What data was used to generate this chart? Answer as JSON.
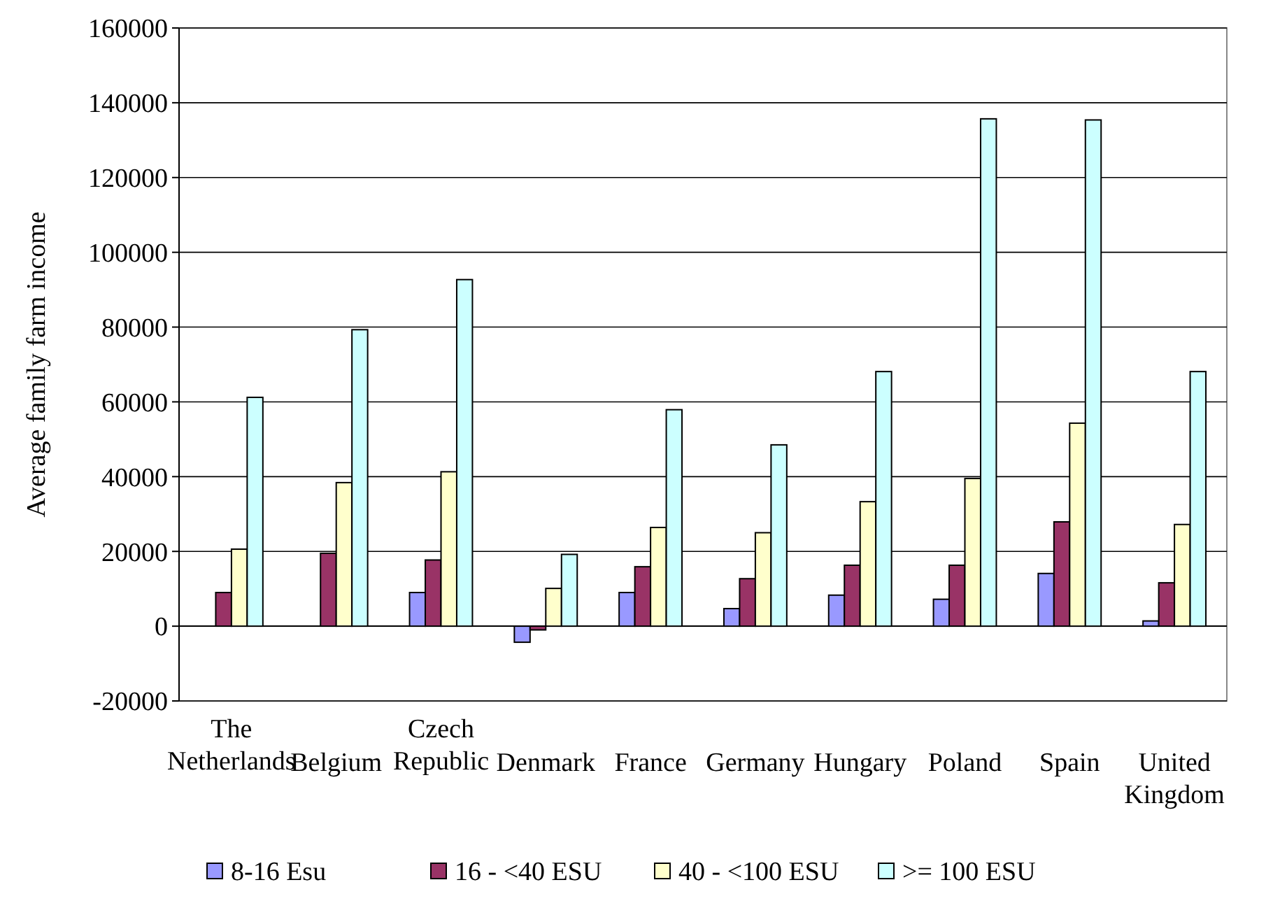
{
  "chart_data": {
    "type": "bar",
    "ylabel": "Average family farm income",
    "categories": [
      "The Netherlands",
      "Belgium",
      "Czech Republic",
      "Denmark",
      "France",
      "Germany",
      "Hungary",
      "Poland",
      "Spain",
      "United Kingdom"
    ],
    "series": [
      {
        "name": "8-16 Esu",
        "color": "#9999ff",
        "values": [
          null,
          null,
          9000,
          -4300,
          9000,
          4700,
          8300,
          7200,
          14100,
          1400
        ]
      },
      {
        "name": "16 - <40 ESU",
        "color": "#993366",
        "values": [
          9000,
          19500,
          17700,
          -1000,
          15900,
          12700,
          16300,
          16300,
          27900,
          11600
        ]
      },
      {
        "name": "40 - <100 ESU",
        "color": "#ffffcc",
        "values": [
          20600,
          38400,
          41300,
          10100,
          26400,
          25000,
          33300,
          39500,
          54300,
          27200
        ]
      },
      {
        "name": ">= 100 ESU",
        "color": "#ccffff",
        "values": [
          61200,
          79300,
          92700,
          19200,
          57900,
          48500,
          68100,
          135700,
          135400,
          68100
        ]
      }
    ],
    "ylim": [
      -20000,
      160000
    ],
    "yticks": [
      -20000,
      0,
      20000,
      40000,
      60000,
      80000,
      100000,
      120000,
      140000,
      160000
    ],
    "grid": "y",
    "legend": "bottom"
  }
}
